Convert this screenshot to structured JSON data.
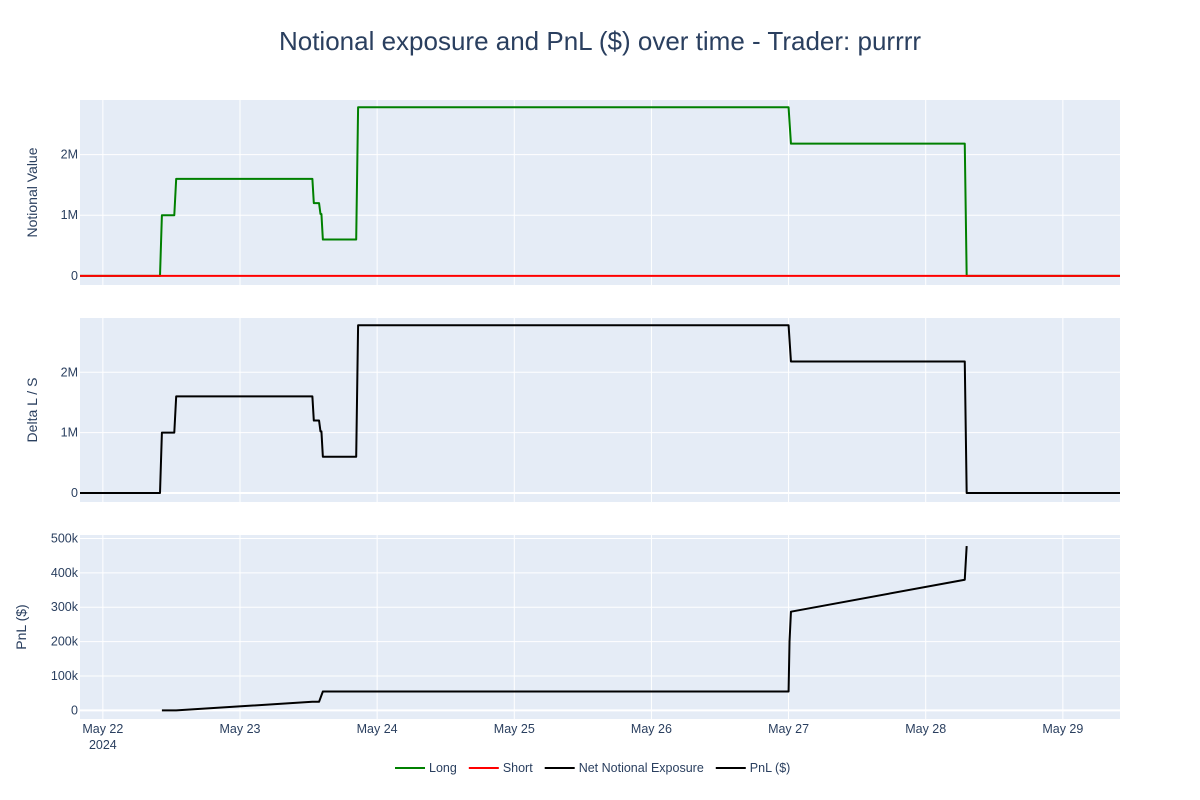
{
  "chart_data": {
    "type": "line",
    "title": "Notional exposure and PnL ($) over time - Trader: purrrr",
    "x_axis": {
      "range": [
        "2024-05-21T20:00",
        "2024-05-29T10:00"
      ],
      "ticks": [
        {
          "value": "2024-05-22T00:00",
          "label": "May 22",
          "sublabel": "2024"
        },
        {
          "value": "2024-05-23T00:00",
          "label": "May 23"
        },
        {
          "value": "2024-05-24T00:00",
          "label": "May 24"
        },
        {
          "value": "2024-05-25T00:00",
          "label": "May 25"
        },
        {
          "value": "2024-05-26T00:00",
          "label": "May 26"
        },
        {
          "value": "2024-05-27T00:00",
          "label": "May 27"
        },
        {
          "value": "2024-05-28T00:00",
          "label": "May 28"
        },
        {
          "value": "2024-05-29T00:00",
          "label": "May 29"
        }
      ]
    },
    "grid": true,
    "legend": {
      "position": "bottom-center",
      "entries": [
        {
          "name": "Long",
          "color": "#008000"
        },
        {
          "name": "Short",
          "color": "#ff0000"
        },
        {
          "name": "Net Notional Exposure",
          "color": "#000000"
        },
        {
          "name": "PnL ($)",
          "color": "#000000"
        }
      ]
    },
    "panels": [
      {
        "ylabel": "Notional Value",
        "ylim": [
          -150000,
          2900000
        ],
        "yticks": [
          {
            "value": 0,
            "label": "0"
          },
          {
            "value": 1000000,
            "label": "1M"
          },
          {
            "value": 2000000,
            "label": "2M"
          }
        ],
        "series": [
          {
            "name": "Long",
            "color": "#008000",
            "x": [
              "2024-05-21T20:00",
              "2024-05-22T10:00",
              "2024-05-22T10:20",
              "2024-05-22T12:30",
              "2024-05-22T12:50",
              "2024-05-23T12:40",
              "2024-05-23T12:55",
              "2024-05-23T13:50",
              "2024-05-23T14:05",
              "2024-05-23T14:15",
              "2024-05-23T14:30",
              "2024-05-23T20:20",
              "2024-05-23T20:40",
              "2024-05-27T00:00",
              "2024-05-27T00:25",
              "2024-05-28T06:50",
              "2024-05-28T07:10",
              "2024-05-29T10:00"
            ],
            "y": [
              0,
              0,
              1000000,
              1000000,
              1600000,
              1600000,
              1200000,
              1200000,
              1020000,
              1020000,
              600000,
              600000,
              2780000,
              2780000,
              2180000,
              2180000,
              0,
              0
            ]
          },
          {
            "name": "Short",
            "color": "#ff0000",
            "x": [
              "2024-05-21T20:00",
              "2024-05-29T10:00"
            ],
            "y": [
              0,
              0
            ]
          }
        ]
      },
      {
        "ylabel": "Delta L / S",
        "ylim": [
          -150000,
          2900000
        ],
        "yticks": [
          {
            "value": 0,
            "label": "0"
          },
          {
            "value": 1000000,
            "label": "1M"
          },
          {
            "value": 2000000,
            "label": "2M"
          }
        ],
        "series": [
          {
            "name": "Net Notional Exposure",
            "color": "#000000",
            "x": [
              "2024-05-21T20:00",
              "2024-05-22T10:00",
              "2024-05-22T10:20",
              "2024-05-22T12:30",
              "2024-05-22T12:50",
              "2024-05-23T12:40",
              "2024-05-23T12:55",
              "2024-05-23T13:50",
              "2024-05-23T14:05",
              "2024-05-23T14:15",
              "2024-05-23T14:30",
              "2024-05-23T20:20",
              "2024-05-23T20:40",
              "2024-05-27T00:00",
              "2024-05-27T00:25",
              "2024-05-28T06:50",
              "2024-05-28T07:10",
              "2024-05-29T10:00"
            ],
            "y": [
              0,
              0,
              1000000,
              1000000,
              1600000,
              1600000,
              1200000,
              1200000,
              1020000,
              1020000,
              600000,
              600000,
              2780000,
              2780000,
              2180000,
              2180000,
              0,
              0
            ]
          }
        ]
      },
      {
        "ylabel": "PnL ($)",
        "ylim": [
          -25000,
          510000
        ],
        "yticks": [
          {
            "value": 0,
            "label": "0"
          },
          {
            "value": 100000,
            "label": "100k"
          },
          {
            "value": 200000,
            "label": "200k"
          },
          {
            "value": 300000,
            "label": "300k"
          },
          {
            "value": 400000,
            "label": "400k"
          },
          {
            "value": 500000,
            "label": "500k"
          }
        ],
        "series": [
          {
            "name": "PnL ($)",
            "color": "#000000",
            "x": [
              "2024-05-22T10:20",
              "2024-05-22T12:50",
              "2024-05-23T12:40",
              "2024-05-23T13:50",
              "2024-05-23T14:30",
              "2024-05-23T20:40",
              "2024-05-27T00:00",
              "2024-05-27T00:10",
              "2024-05-27T00:25",
              "2024-05-28T06:50",
              "2024-05-28T07:10"
            ],
            "y": [
              0,
              0,
              25000,
              25000,
              55000,
              55000,
              55000,
              200000,
              287000,
              380000,
              478000
            ]
          }
        ]
      }
    ]
  }
}
